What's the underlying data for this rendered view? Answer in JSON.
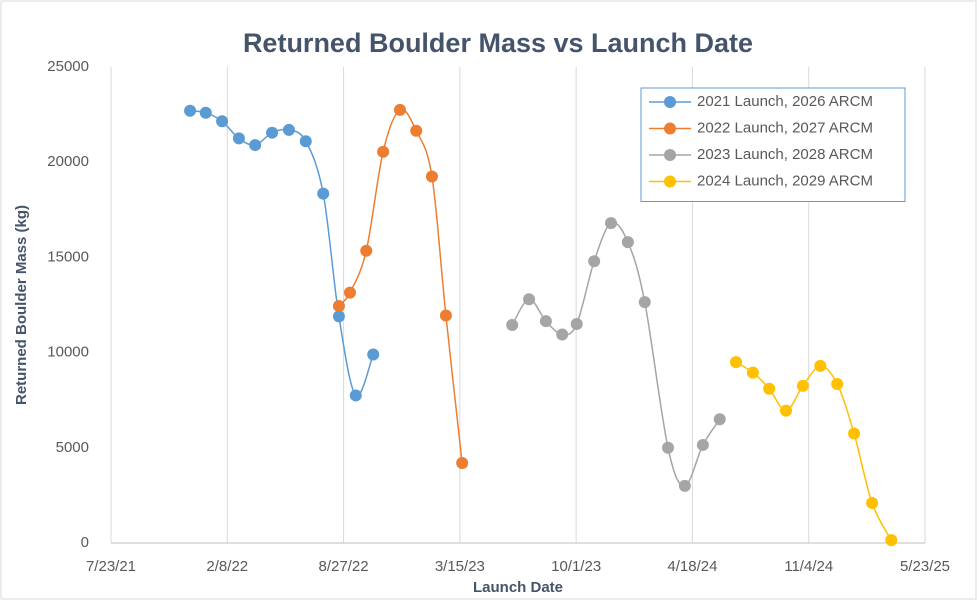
{
  "chart_data": {
    "type": "scatter",
    "title": "Returned Boulder Mass vs Launch Date",
    "xlabel": "Launch Date",
    "ylabel": "Returned Boulder Mass (kg)",
    "xlim": [
      44400,
      45800
    ],
    "xticks": [
      {
        "value": 44400,
        "label": "7/23/21"
      },
      {
        "value": 44600,
        "label": "2/8/22"
      },
      {
        "value": 44800,
        "label": "8/27/22"
      },
      {
        "value": 45000,
        "label": "3/15/23"
      },
      {
        "value": 45200,
        "label": "10/1/23"
      },
      {
        "value": 45400,
        "label": "4/18/24"
      },
      {
        "value": 45600,
        "label": "11/4/24"
      },
      {
        "value": 45800,
        "label": "5/23/25"
      }
    ],
    "ylim": [
      0,
      25000
    ],
    "yticks": [
      0,
      5000,
      10000,
      15000,
      20000,
      25000
    ],
    "xgrid": true,
    "smooth": true,
    "legend": "upper right",
    "series": [
      {
        "name": "2021 Launch, 2026 ARCM",
        "color": "#5b9bd5",
        "x": [
          44536,
          44563,
          44591,
          44620,
          44648,
          44677,
          44706,
          44735,
          44765,
          44792,
          44821,
          44851
        ],
        "values": [
          22700,
          22600,
          22150,
          21250,
          20900,
          21550,
          21700,
          21100,
          18350,
          11900,
          7750,
          9900
        ]
      },
      {
        "name": "2022 Launch, 2027 ARCM",
        "color": "#ed7d31",
        "x": [
          44792,
          44811,
          44839,
          44868,
          44897,
          44925,
          44952,
          44976,
          45004
        ],
        "values": [
          12450,
          13150,
          15350,
          20550,
          22750,
          21650,
          19250,
          11950,
          4200
        ]
      },
      {
        "name": "2023 Launch, 2028 ARCM",
        "color": "#a5a5a5",
        "x": [
          45090,
          45119,
          45148,
          45176,
          45201,
          45231,
          45260,
          45289,
          45318,
          45358,
          45387,
          45418,
          45447
        ],
        "values": [
          11450,
          12800,
          11650,
          10950,
          11500,
          14800,
          16800,
          15800,
          12650,
          5000,
          3000,
          5150,
          6500
        ]
      },
      {
        "name": "2024 Launch, 2029 ARCM",
        "color": "#ffc000",
        "x": [
          45475,
          45504,
          45532,
          45561,
          45590,
          45620,
          45649,
          45678,
          45709,
          45742
        ],
        "values": [
          9500,
          8950,
          8100,
          6950,
          8250,
          9300,
          8350,
          5750,
          2100,
          150
        ]
      }
    ]
  }
}
